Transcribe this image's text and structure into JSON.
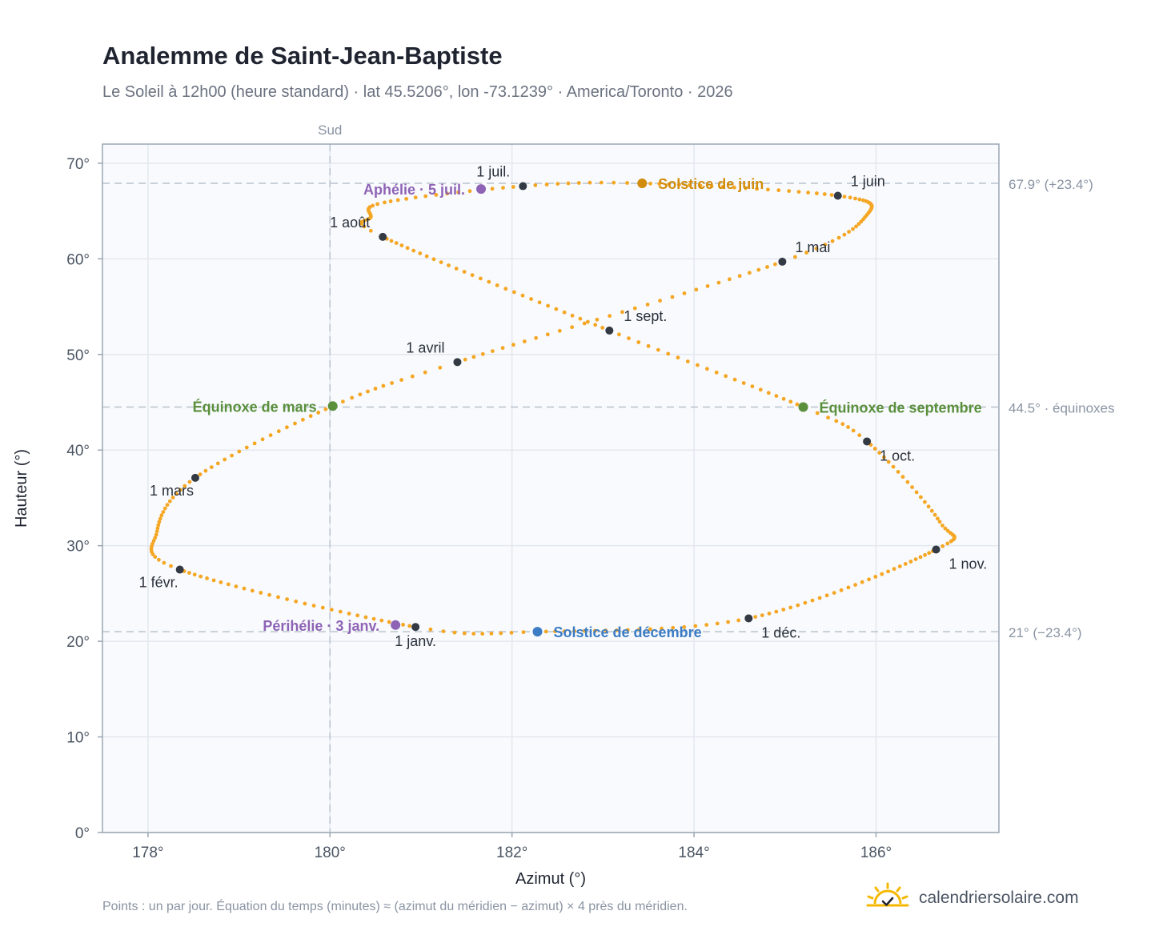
{
  "header": {
    "title": "Analemme de Saint-Jean-Baptiste",
    "subtitle": "Le Soleil à 12h00 (heure standard) · lat 45.5206°, lon -73.1239° · America/Toronto · 2026"
  },
  "footer": {
    "note": "Points : un par jour. Équation du temps (minutes) ≈ (azimut du méridien − azimut) × 4 près du méridien.",
    "brand": "calendriersolaire.com",
    "brand_icon": "sun-check-icon"
  },
  "colors": {
    "analemma": "#f5a623",
    "month_marker": "#333a44",
    "solstice_june": "#d18c0b",
    "solstice_december": "#3b7cc4",
    "equinox": "#5a8f3c",
    "apsis": "#8e63b5",
    "reference_line": "#b8c2cd",
    "plot_bg": "#f8fafd",
    "plot_border": "#9aa6b4"
  },
  "chart_data": {
    "type": "scatter",
    "title": "Analemme de Saint-Jean-Baptiste",
    "xlabel": "Azimut (°)",
    "ylabel": "Hauteur (°)",
    "xlim": [
      177.5,
      187.35
    ],
    "ylim": [
      0,
      72
    ],
    "xticks": [
      178,
      180,
      182,
      184,
      186
    ],
    "xtick_labels": [
      "178°",
      "180°",
      "182°",
      "184°",
      "186°"
    ],
    "yticks": [
      0,
      10,
      20,
      30,
      40,
      50,
      60,
      70
    ],
    "ytick_labels": [
      "0°",
      "10°",
      "20°",
      "30°",
      "40°",
      "50°",
      "60°",
      "70°"
    ],
    "grid": true,
    "vertical_reference": {
      "x": 180,
      "label": "Sud"
    },
    "horizontal_references": [
      {
        "y": 67.9,
        "label": "67.9° (+23.4°)"
      },
      {
        "y": 44.5,
        "label": "44.5° · équinoxes"
      },
      {
        "y": 21.0,
        "label": "21° (−23.4°)"
      }
    ],
    "analemma_anchor_points": [
      {
        "day": 1,
        "az": 180.94,
        "alt": 21.5
      },
      {
        "day": 32,
        "az": 178.35,
        "alt": 27.5
      },
      {
        "day": 45,
        "az": 178.1,
        "alt": 31.5
      },
      {
        "day": 60,
        "az": 178.52,
        "alt": 37.1
      },
      {
        "day": 79,
        "az": 180.03,
        "alt": 44.6
      },
      {
        "day": 91,
        "az": 181.4,
        "alt": 49.2
      },
      {
        "day": 121,
        "az": 184.97,
        "alt": 59.7
      },
      {
        "day": 136,
        "az": 185.9,
        "alt": 64.6
      },
      {
        "day": 152,
        "az": 185.58,
        "alt": 66.6
      },
      {
        "day": 172,
        "az": 183.43,
        "alt": 67.9
      },
      {
        "day": 182,
        "az": 182.12,
        "alt": 67.6
      },
      {
        "day": 196,
        "az": 180.6,
        "alt": 65.9
      },
      {
        "day": 205,
        "az": 180.45,
        "alt": 64.4
      },
      {
        "day": 213,
        "az": 180.58,
        "alt": 62.3
      },
      {
        "day": 244,
        "az": 183.07,
        "alt": 52.5
      },
      {
        "day": 266,
        "az": 185.2,
        "alt": 44.5
      },
      {
        "day": 274,
        "az": 185.9,
        "alt": 40.9
      },
      {
        "day": 292,
        "az": 186.7,
        "alt": 32.5
      },
      {
        "day": 305,
        "az": 186.66,
        "alt": 29.6
      },
      {
        "day": 335,
        "az": 184.6,
        "alt": 22.4
      },
      {
        "day": 355,
        "az": 182.28,
        "alt": 21.0
      },
      {
        "day": 366,
        "az": 180.94,
        "alt": 21.5
      }
    ],
    "month_markers": [
      {
        "label": "1 janv.",
        "az": 180.94,
        "alt": 21.5,
        "pos": "below"
      },
      {
        "label": "1 févr.",
        "az": 178.35,
        "alt": 27.5,
        "pos": "below-left"
      },
      {
        "label": "1 mars",
        "az": 178.52,
        "alt": 37.1,
        "pos": "below-left"
      },
      {
        "label": "1 avril",
        "az": 181.4,
        "alt": 49.2,
        "pos": "above-left"
      },
      {
        "label": "1 mai",
        "az": 184.97,
        "alt": 59.7,
        "pos": "above-right"
      },
      {
        "label": "1 juin",
        "az": 185.58,
        "alt": 66.6,
        "pos": "above-right"
      },
      {
        "label": "1 juil.",
        "az": 182.12,
        "alt": 67.6,
        "pos": "above-left"
      },
      {
        "label": "1 août",
        "az": 180.58,
        "alt": 62.3,
        "pos": "above-left"
      },
      {
        "label": "1 sept.",
        "az": 183.07,
        "alt": 52.5,
        "pos": "right-up"
      },
      {
        "label": "1 oct.",
        "az": 185.9,
        "alt": 40.9,
        "pos": "below-right"
      },
      {
        "label": "1 nov.",
        "az": 186.66,
        "alt": 29.6,
        "pos": "below-right"
      },
      {
        "label": "1 déc.",
        "az": 184.6,
        "alt": 22.4,
        "pos": "below-right"
      }
    ],
    "events": [
      {
        "label": "Solstice de juin",
        "az": 183.43,
        "alt": 67.9,
        "color_key": "solstice_june",
        "pos": "right"
      },
      {
        "label": "Solstice de décembre",
        "az": 182.28,
        "alt": 21.0,
        "color_key": "solstice_december",
        "pos": "right"
      },
      {
        "label": "Équinoxe de mars",
        "az": 180.03,
        "alt": 44.6,
        "color_key": "equinox",
        "pos": "left"
      },
      {
        "label": "Équinoxe de septembre",
        "az": 185.2,
        "alt": 44.5,
        "color_key": "equinox",
        "pos": "right"
      },
      {
        "label": "Aphélie · 5 juil.",
        "az": 181.66,
        "alt": 67.3,
        "color_key": "apsis",
        "pos": "left"
      },
      {
        "label": "Périhélie · 3 janv.",
        "az": 180.72,
        "alt": 21.7,
        "color_key": "apsis",
        "pos": "left"
      }
    ]
  }
}
